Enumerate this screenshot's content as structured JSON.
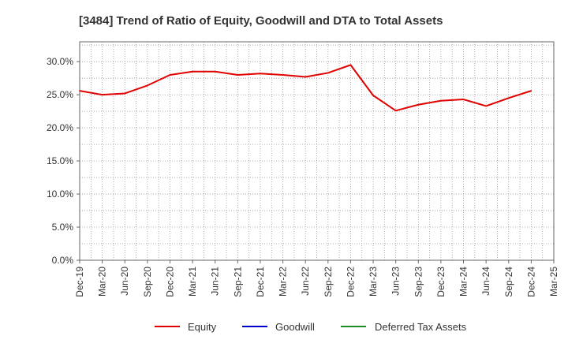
{
  "chart_data": {
    "type": "line",
    "title": "[3484]  Trend of Ratio of Equity, Goodwill and DTA to Total Assets",
    "xlabel": "",
    "ylabel": "",
    "x_ticks": [
      "Dec-19",
      "Mar-20",
      "Jun-20",
      "Sep-20",
      "Dec-20",
      "Mar-21",
      "Jun-21",
      "Sep-21",
      "Dec-21",
      "Mar-22",
      "Jun-22",
      "Sep-22",
      "Dec-22",
      "Mar-23",
      "Jun-23",
      "Sep-23",
      "Dec-23",
      "Mar-24",
      "Jun-24",
      "Sep-24",
      "Dec-24",
      "Mar-25"
    ],
    "y_ticks": [
      "0.0%",
      "5.0%",
      "10.0%",
      "15.0%",
      "20.0%",
      "25.0%",
      "30.0%"
    ],
    "ylim": [
      0,
      33
    ],
    "grid": true,
    "legend_position": "bottom",
    "series": [
      {
        "name": "Equity",
        "color": "#e00000",
        "x": [
          "Dec-19",
          "Mar-20",
          "Jun-20",
          "Sep-20",
          "Dec-20",
          "Mar-21",
          "Jun-21",
          "Sep-21",
          "Dec-21",
          "Mar-22",
          "Jun-22",
          "Sep-22",
          "Dec-22",
          "Mar-23",
          "Jun-23",
          "Sep-23",
          "Dec-23",
          "Mar-24",
          "Jun-24",
          "Sep-24",
          "Dec-24"
        ],
        "values": [
          25.6,
          25.0,
          25.2,
          26.4,
          28.0,
          28.5,
          28.5,
          28.0,
          28.2,
          28.0,
          27.7,
          28.3,
          29.5,
          24.9,
          22.6,
          23.5,
          24.1,
          24.3,
          23.3,
          24.5,
          25.6
        ]
      },
      {
        "name": "Goodwill",
        "color": "#0000cc",
        "x": [],
        "values": []
      },
      {
        "name": "Deferred Tax Assets",
        "color": "#228b22",
        "x": [],
        "values": []
      }
    ]
  }
}
